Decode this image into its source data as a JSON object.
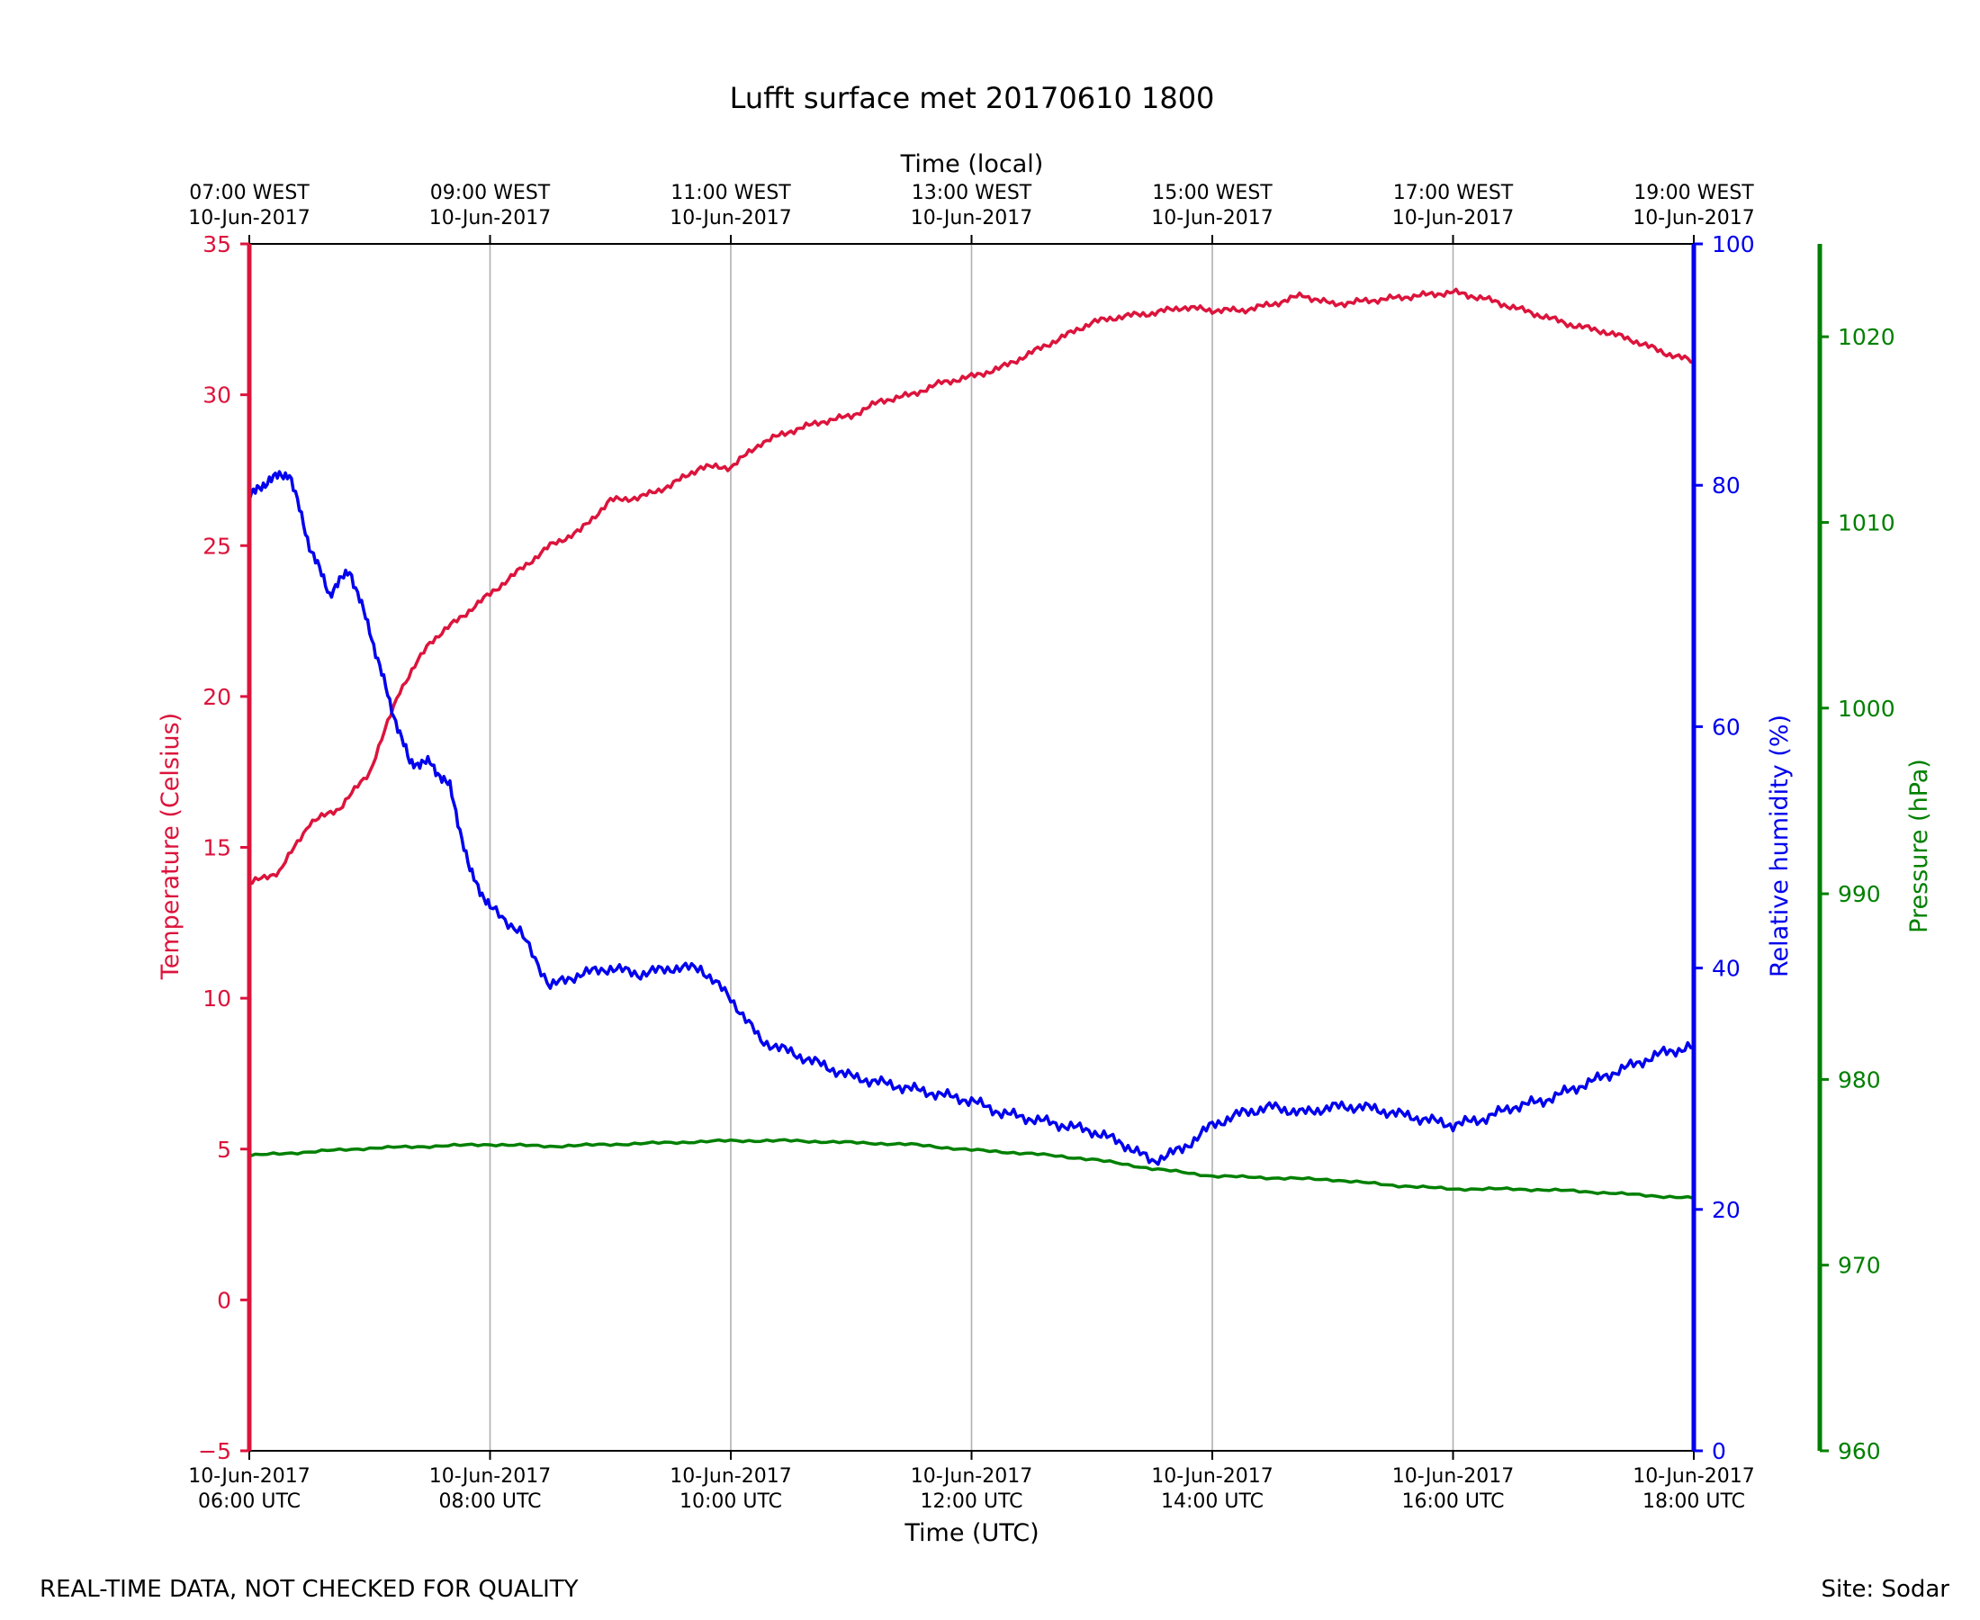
{
  "footer": {
    "left_note": "REAL-TIME DATA, NOT CHECKED FOR QUALITY",
    "right_note": "Site: Sodar"
  },
  "chart_data": {
    "type": "line",
    "title": "Lufft surface met 20170610 1800",
    "xlabel": "Time (UTC)",
    "top_xlabel": "Time (local)",
    "x_range": [
      "2017-06-10 06:00 UTC",
      "2017-06-10 18:00 UTC"
    ],
    "x_ticks_bottom": [
      {
        "date": "10-Jun-2017",
        "time": "06:00 UTC"
      },
      {
        "date": "10-Jun-2017",
        "time": "08:00 UTC"
      },
      {
        "date": "10-Jun-2017",
        "time": "10:00 UTC"
      },
      {
        "date": "10-Jun-2017",
        "time": "12:00 UTC"
      },
      {
        "date": "10-Jun-2017",
        "time": "14:00 UTC"
      },
      {
        "date": "10-Jun-2017",
        "time": "16:00 UTC"
      },
      {
        "date": "10-Jun-2017",
        "time": "18:00 UTC"
      }
    ],
    "x_ticks_top": [
      {
        "time": "07:00 WEST",
        "date": "10-Jun-2017"
      },
      {
        "time": "09:00 WEST",
        "date": "10-Jun-2017"
      },
      {
        "time": "11:00 WEST",
        "date": "10-Jun-2017"
      },
      {
        "time": "13:00 WEST",
        "date": "10-Jun-2017"
      },
      {
        "time": "15:00 WEST",
        "date": "10-Jun-2017"
      },
      {
        "time": "17:00 WEST",
        "date": "10-Jun-2017"
      },
      {
        "time": "19:00 WEST",
        "date": "10-Jun-2017"
      }
    ],
    "grid": "vertical lines at bottom x ticks",
    "axes": {
      "temperature": {
        "label": "Temperature (Celsius)",
        "side": "left",
        "color": "#dc143c",
        "range": [
          -5,
          35
        ],
        "ticks": [
          -5,
          0,
          5,
          10,
          15,
          20,
          25,
          30,
          35
        ]
      },
      "humidity": {
        "label": "Relative humidity (%)",
        "side": "right",
        "color": "#0000ee",
        "range": [
          0,
          100
        ],
        "ticks": [
          0,
          20,
          40,
          60,
          80,
          100
        ]
      },
      "pressure": {
        "label": "Pressure (hPa)",
        "side": "far-right",
        "color": "#008000",
        "range": [
          960,
          1025
        ],
        "ticks": [
          960,
          970,
          980,
          990,
          1000,
          1010,
          1020
        ]
      }
    },
    "series": [
      {
        "name": "Temperature (Celsius)",
        "axis": "temperature",
        "color": "#dc143c",
        "times_utc": [
          "06:00",
          "06:15",
          "06:30",
          "06:45",
          "07:00",
          "07:15",
          "07:30",
          "07:45",
          "08:00",
          "08:15",
          "08:30",
          "08:45",
          "09:00",
          "09:15",
          "09:30",
          "09:45",
          "10:00",
          "10:15",
          "10:30",
          "10:45",
          "11:00",
          "11:15",
          "11:30",
          "11:45",
          "12:00",
          "12:15",
          "12:30",
          "12:45",
          "13:00",
          "13:15",
          "13:30",
          "13:45",
          "14:00",
          "14:15",
          "14:30",
          "14:45",
          "15:00",
          "15:15",
          "15:30",
          "15:45",
          "16:00",
          "16:15",
          "16:30",
          "16:45",
          "17:00",
          "17:15",
          "17:30",
          "17:45",
          "18:00"
        ],
        "values": [
          13.8,
          14.2,
          15.8,
          16.3,
          17.5,
          20.2,
          21.8,
          22.6,
          23.4,
          24.2,
          25.0,
          25.5,
          26.5,
          26.6,
          27.0,
          27.6,
          27.6,
          28.4,
          28.8,
          29.1,
          29.3,
          29.8,
          30.0,
          30.4,
          30.6,
          30.9,
          31.4,
          31.9,
          32.4,
          32.6,
          32.7,
          32.9,
          32.8,
          32.8,
          33.0,
          33.3,
          33.0,
          33.1,
          33.2,
          33.3,
          33.4,
          33.2,
          32.9,
          32.6,
          32.3,
          32.1,
          31.8,
          31.4,
          31.1
        ]
      },
      {
        "name": "Relative humidity (%)",
        "axis": "humidity",
        "color": "#0000ee",
        "times_utc": [
          "06:00",
          "06:10",
          "06:20",
          "06:30",
          "06:40",
          "06:50",
          "07:00",
          "07:10",
          "07:20",
          "07:30",
          "07:40",
          "07:50",
          "08:00",
          "08:15",
          "08:30",
          "08:45",
          "09:00",
          "09:15",
          "09:30",
          "09:45",
          "10:00",
          "10:15",
          "10:30",
          "10:45",
          "11:00",
          "11:15",
          "11:30",
          "11:45",
          "12:00",
          "12:15",
          "12:30",
          "12:45",
          "13:00",
          "13:15",
          "13:30",
          "13:45",
          "14:00",
          "14:15",
          "14:30",
          "14:45",
          "15:00",
          "15:15",
          "15:30",
          "15:45",
          "16:00",
          "16:15",
          "16:30",
          "16:45",
          "17:00",
          "17:15",
          "17:30",
          "17:45",
          "18:00"
        ],
        "values": [
          79,
          80.5,
          81,
          75,
          71,
          73,
          68,
          62,
          57,
          57,
          55,
          48,
          45,
          43,
          38.5,
          39.5,
          40,
          39.5,
          40,
          40,
          37.5,
          34,
          33,
          32,
          31,
          30.5,
          30,
          29.5,
          29,
          28,
          27.5,
          27,
          26.5,
          25.5,
          24,
          25,
          27,
          28,
          28.5,
          28,
          28.5,
          28.5,
          28,
          27.5,
          27,
          27.5,
          28.5,
          29,
          30,
          31,
          32,
          33,
          33.5
        ]
      },
      {
        "name": "Pressure (hPa)",
        "axis": "pressure",
        "color": "#008000",
        "times_utc": [
          "06:00",
          "06:30",
          "07:00",
          "07:30",
          "08:00",
          "08:30",
          "09:00",
          "09:30",
          "10:00",
          "10:30",
          "11:00",
          "11:30",
          "12:00",
          "12:30",
          "13:00",
          "13:30",
          "14:00",
          "14:30",
          "15:00",
          "15:30",
          "16:00",
          "16:30",
          "17:00",
          "17:30",
          "18:00"
        ],
        "values": [
          975.9,
          976.1,
          976.3,
          976.4,
          976.5,
          976.4,
          976.5,
          976.6,
          976.7,
          976.7,
          976.6,
          976.5,
          976.2,
          976.0,
          975.7,
          975.2,
          974.8,
          974.7,
          974.6,
          974.3,
          974.1,
          974.1,
          974.0,
          973.8,
          973.6
        ]
      }
    ]
  }
}
